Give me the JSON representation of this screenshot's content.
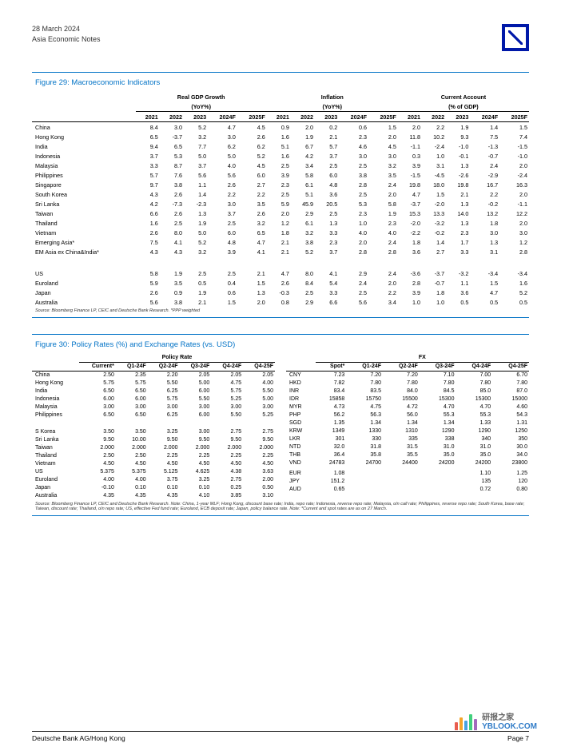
{
  "header": {
    "date": "28 March 2024",
    "title": "Asia Economic Notes"
  },
  "fig29": {
    "title": "Figure 29: Macroeconomic Indicators",
    "groups": [
      "Real GDP Growth\n(YoY%)",
      "Inflation\n(YoY%)",
      "Current Account\n(% of GDP)"
    ],
    "years": [
      "2021",
      "2022",
      "2023",
      "2024F",
      "2025F"
    ],
    "rows": [
      {
        "label": "China",
        "v": [
          "8.4",
          "3.0",
          "5.2",
          "4.7",
          "4.5",
          "0.9",
          "2.0",
          "0.2",
          "0.6",
          "1.5",
          "2.0",
          "2.2",
          "1.9",
          "1.4",
          "1.5"
        ]
      },
      {
        "label": "Hong Kong",
        "v": [
          "6.5",
          "-3.7",
          "3.2",
          "3.0",
          "2.6",
          "1.6",
          "1.9",
          "2.1",
          "2.3",
          "2.0",
          "11.8",
          "10.2",
          "9.3",
          "7.5",
          "7.4"
        ]
      },
      {
        "label": "India",
        "v": [
          "9.4",
          "6.5",
          "7.7",
          "6.2",
          "6.2",
          "5.1",
          "6.7",
          "5.7",
          "4.6",
          "4.5",
          "-1.1",
          "-2.4",
          "-1.0",
          "-1.3",
          "-1.5"
        ]
      },
      {
        "label": "Indonesia",
        "v": [
          "3.7",
          "5.3",
          "5.0",
          "5.0",
          "5.2",
          "1.6",
          "4.2",
          "3.7",
          "3.0",
          "3.0",
          "0.3",
          "1.0",
          "-0.1",
          "-0.7",
          "-1.0"
        ]
      },
      {
        "label": "Malaysia",
        "v": [
          "3.3",
          "8.7",
          "3.7",
          "4.0",
          "4.5",
          "2.5",
          "3.4",
          "2.5",
          "2.5",
          "3.2",
          "3.9",
          "3.1",
          "1.3",
          "2.4",
          "2.0"
        ]
      },
      {
        "label": "Philippines",
        "v": [
          "5.7",
          "7.6",
          "5.6",
          "5.6",
          "6.0",
          "3.9",
          "5.8",
          "6.0",
          "3.8",
          "3.5",
          "-1.5",
          "-4.5",
          "-2.6",
          "-2.9",
          "-2.4"
        ]
      },
      {
        "label": "Singapore",
        "v": [
          "9.7",
          "3.8",
          "1.1",
          "2.6",
          "2.7",
          "2.3",
          "6.1",
          "4.8",
          "2.8",
          "2.4",
          "19.8",
          "18.0",
          "19.8",
          "16.7",
          "16.3"
        ]
      },
      {
        "label": "South Korea",
        "v": [
          "4.3",
          "2.6",
          "1.4",
          "2.2",
          "2.2",
          "2.5",
          "5.1",
          "3.6",
          "2.5",
          "2.0",
          "4.7",
          "1.5",
          "2.1",
          "2.2",
          "2.0"
        ]
      },
      {
        "label": "Sri Lanka",
        "v": [
          "4.2",
          "-7.3",
          "-2.3",
          "3.0",
          "3.5",
          "5.9",
          "45.9",
          "20.5",
          "5.3",
          "5.8",
          "-3.7",
          "-2.0",
          "1.3",
          "-0.2",
          "-1.1"
        ]
      },
      {
        "label": "Taiwan",
        "v": [
          "6.6",
          "2.6",
          "1.3",
          "3.7",
          "2.6",
          "2.0",
          "2.9",
          "2.5",
          "2.3",
          "1.9",
          "15.3",
          "13.3",
          "14.0",
          "13.2",
          "12.2"
        ]
      },
      {
        "label": "Thailand",
        "v": [
          "1.6",
          "2.5",
          "1.9",
          "2.5",
          "3.2",
          "1.2",
          "6.1",
          "1.3",
          "1.0",
          "2.3",
          "-2.0",
          "-3.2",
          "1.3",
          "1.8",
          "2.0"
        ]
      },
      {
        "label": "Vietnam",
        "v": [
          "2.6",
          "8.0",
          "5.0",
          "6.0",
          "6.5",
          "1.8",
          "3.2",
          "3.3",
          "4.0",
          "4.0",
          "-2.2",
          "-0.2",
          "2.3",
          "3.0",
          "3.0"
        ]
      },
      {
        "label": "Emerging Asia*",
        "v": [
          "7.5",
          "4.1",
          "5.2",
          "4.8",
          "4.7",
          "2.1",
          "3.8",
          "2.3",
          "2.0",
          "2.4",
          "1.8",
          "1.4",
          "1.7",
          "1.3",
          "1.2"
        ]
      },
      {
        "label": "EM Asia ex China&India*",
        "v": [
          "4.3",
          "4.3",
          "3.2",
          "3.9",
          "4.1",
          "2.1",
          "5.2",
          "3.7",
          "2.8",
          "2.8",
          "3.6",
          "2.7",
          "3.3",
          "3.1",
          "2.8"
        ]
      }
    ],
    "rows2": [
      {
        "label": "US",
        "v": [
          "5.8",
          "1.9",
          "2.5",
          "2.5",
          "2.1",
          "4.7",
          "8.0",
          "4.1",
          "2.9",
          "2.4",
          "-3.6",
          "-3.7",
          "-3.2",
          "-3.4",
          "-3.4"
        ]
      },
      {
        "label": "Euroland",
        "v": [
          "5.9",
          "3.5",
          "0.5",
          "0.4",
          "1.5",
          "2.6",
          "8.4",
          "5.4",
          "2.4",
          "2.0",
          "2.8",
          "-0.7",
          "1.1",
          "1.5",
          "1.6"
        ]
      },
      {
        "label": "Japan",
        "v": [
          "2.6",
          "0.9",
          "1.9",
          "0.6",
          "1.3",
          "-0.3",
          "2.5",
          "3.3",
          "2.5",
          "2.2",
          "3.9",
          "1.8",
          "3.6",
          "4.7",
          "5.2"
        ]
      },
      {
        "label": "Australia",
        "v": [
          "5.6",
          "3.8",
          "2.1",
          "1.5",
          "2.0",
          "0.8",
          "2.9",
          "6.6",
          "5.6",
          "3.4",
          "1.0",
          "1.0",
          "0.5",
          "0.5",
          "0.5"
        ]
      }
    ],
    "source": "Source: Bloomberg Finance LP, CEIC and Deutsche Bank Research. *PPP weighted"
  },
  "fig30": {
    "title": "Figure 30: Policy Rates (%) and Exchange Rates (vs. USD)",
    "policy": {
      "group_label": "Policy Rate",
      "cols": [
        "Current*",
        "Q1-24F",
        "Q2-24F",
        "Q3-24F",
        "Q4-24F",
        "Q4-25F"
      ],
      "rows": [
        {
          "label": "China",
          "v": [
            "2.50",
            "2.35",
            "2.20",
            "2.05",
            "2.05",
            "2.05"
          ]
        },
        {
          "label": "Hong Kong",
          "v": [
            "5.75",
            "5.75",
            "5.50",
            "5.00",
            "4.75",
            "4.00"
          ]
        },
        {
          "label": "India",
          "v": [
            "6.50",
            "6.50",
            "6.25",
            "6.00",
            "5.75",
            "5.50"
          ]
        },
        {
          "label": "Indonesia",
          "v": [
            "6.00",
            "6.00",
            "5.75",
            "5.50",
            "5.25",
            "5.00"
          ]
        },
        {
          "label": "Malaysia",
          "v": [
            "3.00",
            "3.00",
            "3.00",
            "3.00",
            "3.00",
            "3.00"
          ]
        },
        {
          "label": "Philippines",
          "v": [
            "6.50",
            "6.50",
            "6.25",
            "6.00",
            "5.50",
            "5.25"
          ]
        }
      ],
      "rows2": [
        {
          "label": "S Korea",
          "v": [
            "3.50",
            "3.50",
            "3.25",
            "3.00",
            "2.75",
            "2.75"
          ]
        },
        {
          "label": "Sri Lanka",
          "v": [
            "9.50",
            "10.00",
            "9.50",
            "9.50",
            "9.50",
            "9.50"
          ]
        },
        {
          "label": "Taiwan",
          "v": [
            "2.000",
            "2.000",
            "2.000",
            "2.000",
            "2.000",
            "2.000"
          ]
        },
        {
          "label": "Thailand",
          "v": [
            "2.50",
            "2.50",
            "2.25",
            "2.25",
            "2.25",
            "2.25"
          ]
        },
        {
          "label": "Vietnam",
          "v": [
            "4.50",
            "4.50",
            "4.50",
            "4.50",
            "4.50",
            "4.50"
          ]
        },
        {
          "label": "US",
          "v": [
            "5.375",
            "5.375",
            "5.125",
            "4.625",
            "4.38",
            "3.63"
          ]
        },
        {
          "label": "Euroland",
          "v": [
            "4.00",
            "4.00",
            "3.75",
            "3.25",
            "2.75",
            "2.00"
          ]
        },
        {
          "label": "Japan",
          "v": [
            "-0.10",
            "0.10",
            "0.10",
            "0.10",
            "0.25",
            "0.50"
          ]
        },
        {
          "label": "Australia",
          "v": [
            "4.35",
            "4.35",
            "4.35",
            "4.10",
            "3.85",
            "3.10"
          ]
        }
      ]
    },
    "fx": {
      "group_label": "FX",
      "cols": [
        "",
        "Spot*",
        "Q1-24F",
        "Q2-24F",
        "Q3-24F",
        "Q4-24F",
        "Q4-25F"
      ],
      "rows": [
        {
          "label": "CNY",
          "v": [
            "7.23",
            "7.20",
            "7.20",
            "7.10",
            "7.00",
            "6.70"
          ]
        },
        {
          "label": "HKD",
          "v": [
            "7.82",
            "7.80",
            "7.80",
            "7.80",
            "7.80",
            "7.80"
          ]
        },
        {
          "label": "INR",
          "v": [
            "83.4",
            "83.5",
            "84.0",
            "84.5",
            "85.0",
            "87.0"
          ]
        },
        {
          "label": "IDR",
          "v": [
            "15858",
            "15750",
            "15500",
            "15300",
            "15300",
            "15000"
          ]
        },
        {
          "label": "MYR",
          "v": [
            "4.73",
            "4.75",
            "4.72",
            "4.70",
            "4.70",
            "4.60"
          ]
        },
        {
          "label": "PHP",
          "v": [
            "56.2",
            "56.3",
            "56.0",
            "55.3",
            "55.3",
            "54.3"
          ]
        },
        {
          "label": "SGD",
          "v": [
            "1.35",
            "1.34",
            "1.34",
            "1.34",
            "1.33",
            "1.31"
          ]
        },
        {
          "label": "KRW",
          "v": [
            "1349",
            "1330",
            "1310",
            "1290",
            "1290",
            "1250"
          ]
        },
        {
          "label": "LKR",
          "v": [
            "301",
            "330",
            "335",
            "338",
            "340",
            "350"
          ]
        },
        {
          "label": "NTD",
          "v": [
            "32.0",
            "31.8",
            "31.5",
            "31.0",
            "31.0",
            "30.0"
          ]
        },
        {
          "label": "THB",
          "v": [
            "36.4",
            "35.8",
            "35.5",
            "35.0",
            "35.0",
            "34.0"
          ]
        },
        {
          "label": "VND",
          "v": [
            "24783",
            "24700",
            "24400",
            "24200",
            "24200",
            "23800"
          ]
        },
        {
          "label": "",
          "v": [
            "",
            "",
            "",
            "",
            "",
            ""
          ]
        },
        {
          "label": "EUR",
          "v": [
            "1.08",
            "",
            "",
            "",
            "1.10",
            "1.25"
          ]
        },
        {
          "label": "JPY",
          "v": [
            "151.2",
            "",
            "",
            "",
            "135",
            "120"
          ]
        },
        {
          "label": "AUD",
          "v": [
            "0.65",
            "",
            "",
            "",
            "0.72",
            "0.80"
          ]
        }
      ]
    },
    "source": "Source: Bloomberg Finance LP, CEIC and Deutsche Bank Research. Note: China, 1-year MLF; Hong Kong, discount base rate; India, repo rate; Indonesia, reverse repo rate; Malaysia, o/n call rate; Philippines, reverse repo rate; South Korea, base rate; Taiwan, discount rate; Thailand, o/n repo rate; US, effective Fed fund rate; Euroland, ECB deposit rate; Japan, policy balance rate. Note: *Current and spot rates are as on 27 March."
  },
  "footer": {
    "left": "Deutsche Bank AG/Hong Kong",
    "right": "Page 7"
  },
  "watermark": {
    "text_main": "研报之家",
    "text_sub": "YBLOOK.COM"
  },
  "colors": {
    "db_blue": "#0018a8",
    "title_blue": "#0072c6"
  }
}
